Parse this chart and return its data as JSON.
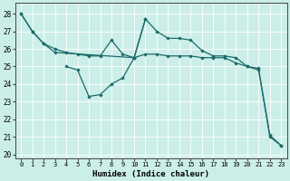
{
  "xlabel": "Humidex (Indice chaleur)",
  "bg_color": "#cceee8",
  "grid_color": "#ffffff",
  "line_color": "#1a6b6b",
  "xlim": [
    -0.5,
    23.5
  ],
  "ylim": [
    19.8,
    28.6
  ],
  "yticks": [
    20,
    21,
    22,
    23,
    24,
    25,
    26,
    27,
    28
  ],
  "xticks": [
    0,
    1,
    2,
    3,
    4,
    5,
    6,
    7,
    8,
    9,
    10,
    11,
    12,
    13,
    14,
    15,
    16,
    17,
    18,
    19,
    20,
    21,
    22,
    23
  ],
  "line1_x": [
    0,
    1,
    2,
    3,
    4,
    5,
    6,
    7,
    8,
    9,
    10,
    11,
    12,
    13,
    14,
    15,
    16,
    17,
    18,
    19,
    20,
    21,
    22,
    23
  ],
  "line1_y": [
    28.0,
    27.0,
    26.3,
    26.0,
    25.8,
    25.7,
    25.6,
    25.6,
    26.5,
    25.7,
    25.5,
    27.7,
    27.0,
    26.6,
    26.6,
    26.5,
    25.9,
    25.6,
    25.6,
    25.5,
    25.0,
    24.8,
    21.1,
    20.5
  ],
  "line2_x": [
    0,
    1,
    2,
    3,
    10,
    11,
    12,
    13,
    14,
    15,
    16,
    17,
    18,
    19,
    20,
    21,
    22,
    23
  ],
  "line2_y": [
    28.0,
    27.0,
    26.3,
    25.8,
    25.5,
    25.7,
    25.7,
    25.6,
    25.6,
    25.6,
    25.5,
    25.5,
    25.5,
    25.2,
    25.0,
    24.9,
    21.0,
    20.5
  ],
  "line3_x": [
    4,
    5,
    6,
    7,
    8,
    9,
    10,
    11
  ],
  "line3_y": [
    25.0,
    24.8,
    23.3,
    23.4,
    24.0,
    24.35,
    25.5,
    27.7
  ]
}
